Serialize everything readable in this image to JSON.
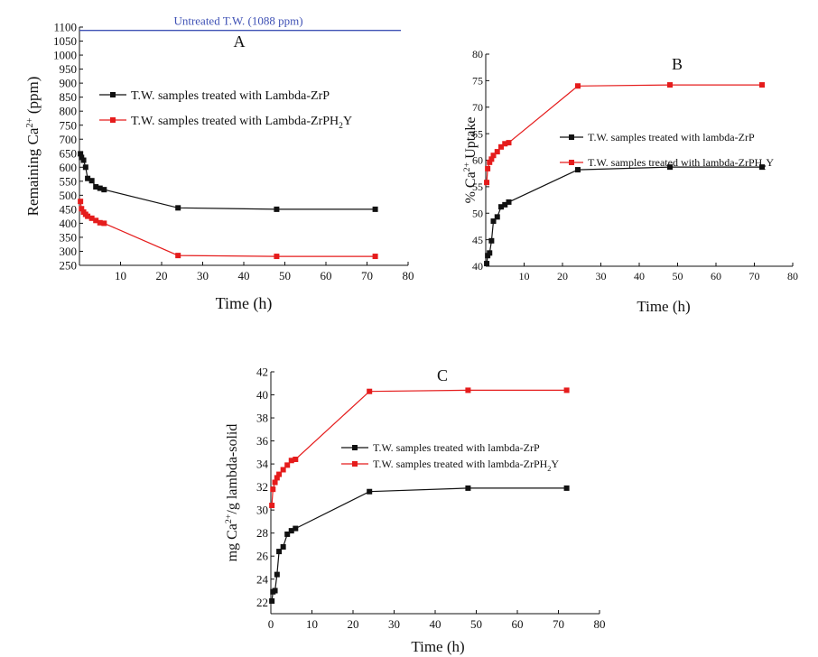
{
  "chart_data": [
    {
      "id": "A",
      "type": "line",
      "panel_label": "A",
      "xlabel": "Time (h)",
      "ylabel": {
        "base": "Remaining Ca",
        "sup": "2+",
        "tail": " (ppm)"
      },
      "xlim": [
        0,
        80
      ],
      "ylim": [
        250,
        1100
      ],
      "xticks": [
        10,
        20,
        30,
        40,
        50,
        60,
        70,
        80
      ],
      "yticks": [
        250,
        300,
        350,
        400,
        450,
        500,
        550,
        600,
        650,
        700,
        750,
        800,
        850,
        900,
        950,
        1000,
        1050,
        1100
      ],
      "reference_line": {
        "y": 1088,
        "label": "Untreated T.W. (1088 ppm)",
        "color": "#3f51b5"
      },
      "legend_position": "upper-middle",
      "series": [
        {
          "name": "T.W. samples treated with Lambda-ZrP",
          "color": "#111111",
          "x": [
            0.25,
            0.5,
            1,
            1.5,
            2,
            3,
            4,
            5,
            6,
            24,
            48,
            72
          ],
          "y": [
            648,
            635,
            625,
            600,
            560,
            552,
            530,
            525,
            520,
            455,
            450,
            450
          ]
        },
        {
          "name": {
            "base": "T.W. samples treated with Lambda-ZrPH",
            "sub": "2",
            "tail": "Y"
          },
          "color": "#e51c1c",
          "x": [
            0.25,
            0.5,
            1,
            1.5,
            2,
            3,
            4,
            5,
            6,
            24,
            48,
            72
          ],
          "y": [
            478,
            452,
            440,
            432,
            425,
            418,
            410,
            402,
            400,
            285,
            282,
            282
          ]
        }
      ]
    },
    {
      "id": "B",
      "type": "line",
      "panel_label": "B",
      "xlabel": "Time (h)",
      "ylabel": {
        "base": "% Ca",
        "sup": "2+",
        "tail": " Uptake"
      },
      "xlim": [
        0,
        80
      ],
      "ylim": [
        40,
        80
      ],
      "xticks": [
        10,
        20,
        30,
        40,
        50,
        60,
        70,
        80
      ],
      "yticks": [
        40,
        45,
        50,
        55,
        60,
        65,
        70,
        75,
        80
      ],
      "legend_position": "middle-right",
      "series": [
        {
          "name": "T.W. samples treated with lambda-ZrP",
          "color": "#111111",
          "x": [
            0.25,
            0.5,
            1,
            1.5,
            2,
            3,
            4,
            5,
            6,
            24,
            48,
            72
          ],
          "y": [
            40.5,
            42,
            42.5,
            44.8,
            48.5,
            49.3,
            51.2,
            51.6,
            52.1,
            58.2,
            58.7,
            58.7
          ]
        },
        {
          "name": {
            "base": "T.W. samples treated with lambda-ZrPH",
            "sub": "2",
            "tail": "Y"
          },
          "color": "#e51c1c",
          "x": [
            0.25,
            0.5,
            1,
            1.5,
            2,
            3,
            4,
            5,
            6,
            24,
            48,
            72
          ],
          "y": [
            55.8,
            58.4,
            59.6,
            60.2,
            60.9,
            61.6,
            62.5,
            63.1,
            63.3,
            74,
            74.2,
            74.2
          ]
        }
      ]
    },
    {
      "id": "C",
      "type": "line",
      "panel_label": "C",
      "xlabel": "Time (h)",
      "ylabel": {
        "base": "mg Ca",
        "sup": "2+",
        "tail": "/g lambda-solid"
      },
      "xlim": [
        0,
        80
      ],
      "ylim": [
        21,
        42
      ],
      "xticks": [
        0,
        10,
        20,
        30,
        40,
        50,
        60,
        70,
        80
      ],
      "yticks": [
        22,
        24,
        26,
        28,
        30,
        32,
        34,
        36,
        38,
        40,
        42
      ],
      "legend_position": "middle-right",
      "series": [
        {
          "name": "T.W. samples treated with lambda-ZrP",
          "color": "#111111",
          "x": [
            0.25,
            0.5,
            1,
            1.5,
            2,
            3,
            4,
            5,
            6,
            24,
            48,
            72
          ],
          "y": [
            22.1,
            22.9,
            23,
            24.4,
            26.4,
            26.8,
            27.9,
            28.2,
            28.4,
            31.6,
            31.9,
            31.9
          ]
        },
        {
          "name": {
            "base": "T.W. samples treated with lambda-ZrPH",
            "sub": "2",
            "tail": "Y"
          },
          "color": "#e51c1c",
          "x": [
            0.25,
            0.5,
            1,
            1.5,
            2,
            3,
            4,
            5,
            6,
            24,
            48,
            72
          ],
          "y": [
            30.4,
            31.8,
            32.4,
            32.8,
            33.1,
            33.5,
            33.9,
            34.3,
            34.4,
            40.3,
            40.4,
            40.4
          ]
        }
      ]
    }
  ]
}
